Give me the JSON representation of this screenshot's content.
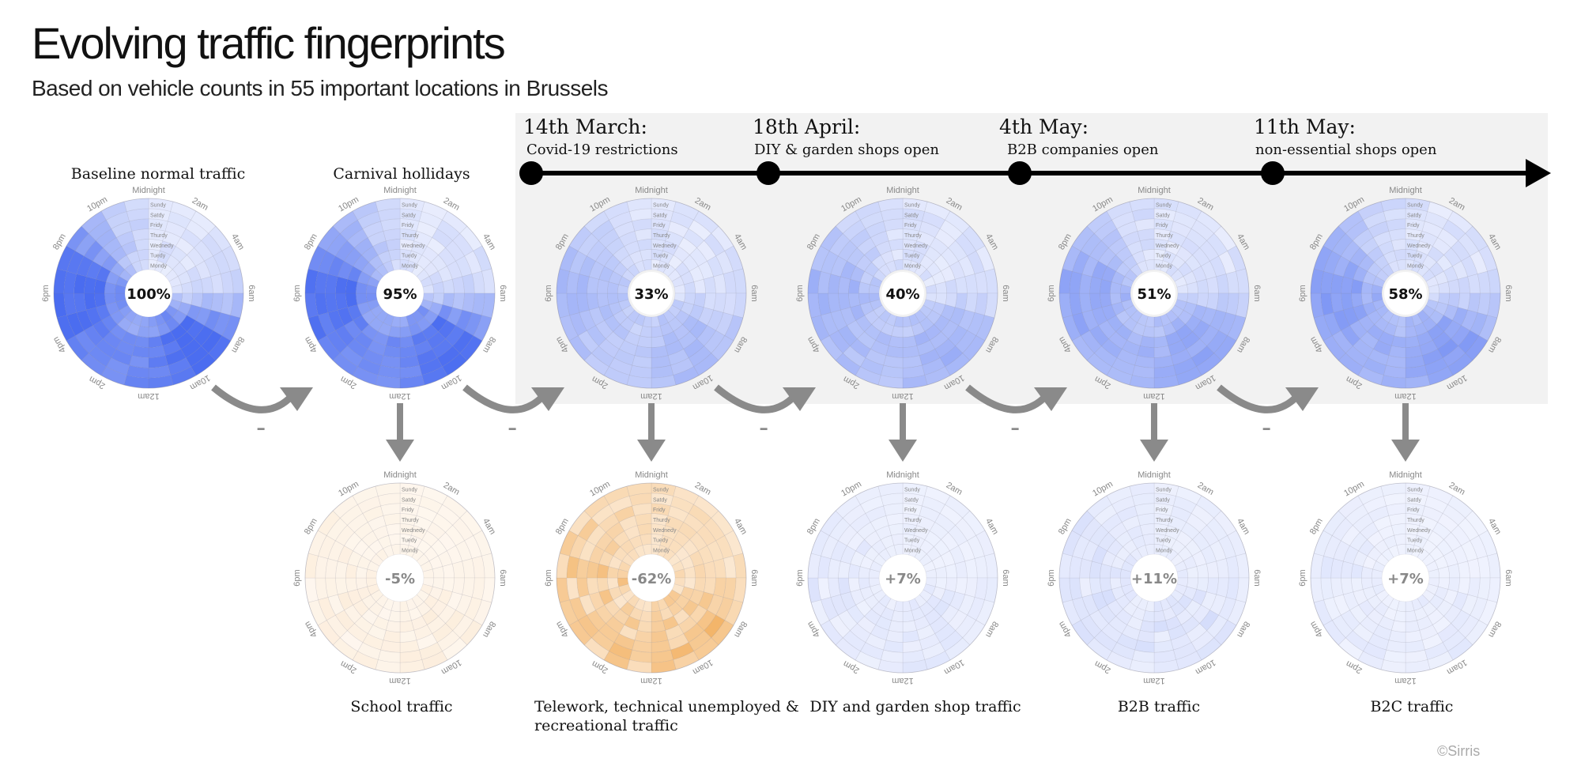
{
  "header": {
    "title": "Evolving traffic fingerprints",
    "subtitle": "Based on vehicle counts in 55 important locations in Brussels"
  },
  "timeline": {
    "events": [
      {
        "date": "14th March:",
        "desc": "Covid-19 restrictions"
      },
      {
        "date": "18th April:",
        "desc": "DIY & garden shops open"
      },
      {
        "date": "4th May:",
        "desc": "B2B companies open"
      },
      {
        "date": "11th May:",
        "desc": "non-essential shops open"
      }
    ]
  },
  "copyright": "©Sirris",
  "minus_sign": "-",
  "colors": {
    "blue": "#4a6cf0",
    "orange": "#f0a040",
    "arrow": "#8a8a8a",
    "panel": "#f2f2f2"
  },
  "chart_data": [
    {
      "type": "heatmap",
      "subtype": "polar",
      "title": "Baseline normal traffic",
      "center_label": "100%",
      "intensity": 1.0,
      "color": "blue",
      "hour_labels": [
        "Midnight",
        "2am",
        "4am",
        "6am",
        "8am",
        "10am",
        "12am",
        "2pm",
        "4pm",
        "6pm",
        "8pm",
        "10pm"
      ],
      "day_labels": [
        "Sundy",
        "Satdy",
        "Fridy",
        "Thurdy",
        "Wednedy",
        "Tuedy",
        "Mondy"
      ]
    },
    {
      "type": "heatmap",
      "subtype": "polar",
      "title": "Carnival hollidays",
      "center_label": "95%",
      "intensity": 0.95,
      "color": "blue",
      "hour_labels": [
        "Midnight",
        "2am",
        "4am",
        "6am",
        "8am",
        "10am",
        "12am",
        "2pm",
        "4pm",
        "6pm",
        "8pm",
        "10pm"
      ],
      "day_labels": [
        "Sundy",
        "Satdy",
        "Fridy",
        "Thurdy",
        "Wednedy",
        "Tuedy",
        "Mondy"
      ]
    },
    {
      "type": "heatmap",
      "subtype": "polar",
      "title": "",
      "center_label": "33%",
      "intensity": 0.33,
      "color": "blue",
      "hour_labels": [
        "Midnight",
        "2am",
        "4am",
        "6am",
        "8am",
        "10am",
        "12am",
        "2pm",
        "4pm",
        "6pm",
        "8pm",
        "10pm"
      ],
      "day_labels": [
        "Sundy",
        "Satdy",
        "Fridy",
        "Thurdy",
        "Wednedy",
        "Tuedy",
        "Mondy"
      ]
    },
    {
      "type": "heatmap",
      "subtype": "polar",
      "title": "",
      "center_label": "40%",
      "intensity": 0.4,
      "color": "blue",
      "hour_labels": [
        "Midnight",
        "2am",
        "4am",
        "6am",
        "8am",
        "10am",
        "12am",
        "2pm",
        "4pm",
        "6pm",
        "8pm",
        "10pm"
      ],
      "day_labels": [
        "Sundy",
        "Satdy",
        "Fridy",
        "Thurdy",
        "Wednedy",
        "Tuedy",
        "Mondy"
      ]
    },
    {
      "type": "heatmap",
      "subtype": "polar",
      "title": "",
      "center_label": "51%",
      "intensity": 0.51,
      "color": "blue",
      "hour_labels": [
        "Midnight",
        "2am",
        "4am",
        "6am",
        "8am",
        "10am",
        "12am",
        "2pm",
        "4pm",
        "6pm",
        "8pm",
        "10pm"
      ],
      "day_labels": [
        "Sundy",
        "Satdy",
        "Fridy",
        "Thurdy",
        "Wednedy",
        "Tuedy",
        "Mondy"
      ]
    },
    {
      "type": "heatmap",
      "subtype": "polar",
      "title": "",
      "center_label": "58%",
      "intensity": 0.58,
      "color": "blue",
      "hour_labels": [
        "Midnight",
        "2am",
        "4am",
        "6am",
        "8am",
        "10am",
        "12am",
        "2pm",
        "4pm",
        "6pm",
        "8pm",
        "10pm"
      ],
      "day_labels": [
        "Sundy",
        "Satdy",
        "Fridy",
        "Thurdy",
        "Wednedy",
        "Tuedy",
        "Mondy"
      ]
    },
    {
      "type": "heatmap",
      "subtype": "polar",
      "title": "School traffic",
      "center_label": "-5%",
      "intensity": 0.12,
      "color": "orange",
      "hour_labels": [
        "Midnight",
        "2am",
        "4am",
        "6am",
        "8am",
        "10am",
        "12am",
        "2pm",
        "4pm",
        "6pm",
        "8pm",
        "10pm"
      ],
      "day_labels": [
        "Sundy",
        "Satdy",
        "Fridy",
        "Thurdy",
        "Wednedy",
        "Tuedy",
        "Mondy"
      ]
    },
    {
      "type": "heatmap",
      "subtype": "polar",
      "title": "Telework, technical unemployed & recreational traffic",
      "center_label": "-62%",
      "intensity": 0.62,
      "color": "orange",
      "hour_labels": [
        "Midnight",
        "2am",
        "4am",
        "6am",
        "8am",
        "10am",
        "12am",
        "2pm",
        "4pm",
        "6pm",
        "8pm",
        "10pm"
      ],
      "day_labels": [
        "Sundy",
        "Satdy",
        "Fridy",
        "Thurdy",
        "Wednedy",
        "Tuedy",
        "Mondy"
      ]
    },
    {
      "type": "heatmap",
      "subtype": "polar",
      "title": "DIY and garden shop traffic",
      "center_label": "+7%",
      "intensity": 0.12,
      "color": "blue",
      "hour_labels": [
        "Midnight",
        "2am",
        "4am",
        "6am",
        "8am",
        "10am",
        "12am",
        "2pm",
        "4pm",
        "6pm",
        "8pm",
        "10pm"
      ],
      "day_labels": [
        "Sundy",
        "Satdy",
        "Fridy",
        "Thurdy",
        "Wednedy",
        "Tuedy",
        "Mondy"
      ]
    },
    {
      "type": "heatmap",
      "subtype": "polar",
      "title": "B2B traffic",
      "center_label": "+11%",
      "intensity": 0.16,
      "color": "blue",
      "hour_labels": [
        "Midnight",
        "2am",
        "4am",
        "6am",
        "8am",
        "10am",
        "12am",
        "2pm",
        "4pm",
        "6pm",
        "8pm",
        "10pm"
      ],
      "day_labels": [
        "Sundy",
        "Satdy",
        "Fridy",
        "Thurdy",
        "Wednedy",
        "Tuedy",
        "Mondy"
      ]
    },
    {
      "type": "heatmap",
      "subtype": "polar",
      "title": "B2C traffic",
      "center_label": "+7%",
      "intensity": 0.1,
      "color": "blue",
      "hour_labels": [
        "Midnight",
        "2am",
        "4am",
        "6am",
        "8am",
        "10am",
        "12am",
        "2pm",
        "4pm",
        "6pm",
        "8pm",
        "10pm"
      ],
      "day_labels": [
        "Sundy",
        "Satdy",
        "Fridy",
        "Thurdy",
        "Wednedy",
        "Tuedy",
        "Mondy"
      ]
    }
  ]
}
